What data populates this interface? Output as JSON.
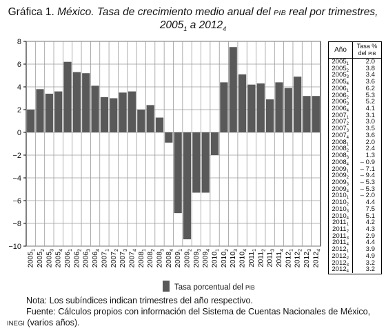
{
  "title": {
    "prefix": "Gráfica 1.",
    "country": "México.",
    "text_a": "Tasa de crecimiento medio anual del",
    "pib": "PIB",
    "text_b": "real por trimestres,",
    "line2_a": "2005",
    "line2_a_sub": "1",
    "line2_mid": "a 2012",
    "line2_b_sub": "4"
  },
  "legend": {
    "label": "Tasa porcentual del",
    "pib": "PIB",
    "color": "#595959"
  },
  "table": {
    "header_year": "Año",
    "header_rate_1": "Tasa %",
    "header_rate_2": "del",
    "header_rate_pib": "PIB"
  },
  "notes": {
    "nota": "Nota: Los subíndices indican trimestres del año respectivo.",
    "fuente": "Fuente: Cálculos propios con información del Sistema de Cuentas Nacionales de México,",
    "inegi": "INEGI",
    "fuente_end": "(varios años)."
  },
  "chart_data": {
    "type": "bar",
    "categories": [
      "2005-1",
      "2005-2",
      "2005-3",
      "2005-4",
      "2006-1",
      "2006-2",
      "2006-3",
      "2006-4",
      "2007-1",
      "2007-2",
      "2007-3",
      "2007-4",
      "2008-1",
      "2008-2",
      "2008-3",
      "2008-4",
      "2009-1",
      "2009-2",
      "2009-3",
      "2009-4",
      "2010-1",
      "2010-2",
      "2010-3",
      "2010-4",
      "2011-1",
      "2011-2",
      "2011-3",
      "2011-4",
      "2012-1",
      "2012-2",
      "2012-3",
      "2012-4"
    ],
    "category_years": [
      "2005",
      "2005",
      "2005",
      "2005",
      "2006",
      "2006",
      "2006",
      "2006",
      "2007",
      "2007",
      "2007",
      "2007",
      "2008",
      "2008",
      "2008",
      "2008",
      "2009",
      "2009",
      "2009",
      "2009",
      "2010",
      "2010",
      "2010",
      "2010",
      "2011",
      "2011",
      "2011",
      "2011",
      "2012",
      "2012",
      "2012",
      "2012"
    ],
    "category_quarters": [
      "1",
      "2",
      "3",
      "4",
      "1",
      "2",
      "3",
      "4",
      "1",
      "2",
      "3",
      "4",
      "1",
      "2",
      "3",
      "4",
      "1",
      "2",
      "3",
      "4",
      "1",
      "2",
      "3",
      "4",
      "1",
      "2",
      "3",
      "4",
      "1",
      "2",
      "3",
      "4"
    ],
    "values": [
      2.0,
      3.8,
      3.4,
      3.6,
      6.2,
      5.3,
      5.2,
      4.1,
      3.1,
      3.0,
      3.5,
      3.6,
      2.0,
      2.4,
      1.3,
      -0.9,
      -7.1,
      -9.4,
      -5.3,
      -5.3,
      -2.0,
      4.4,
      7.5,
      5.1,
      4.2,
      4.3,
      2.9,
      4.4,
      3.9,
      4.9,
      3.2,
      3.2
    ],
    "value_labels": [
      "2.0",
      "3.8",
      "3.4",
      "3.6",
      "6.2",
      "5.3",
      "5.2",
      "4.1",
      "3.1",
      "3.0",
      "3.5",
      "3.6",
      "2.0",
      "2.4",
      "1.3",
      "– 0.9",
      "– 7.1",
      "– 9.4",
      "– 5.3",
      "– 5.3",
      "– 2.0",
      "4.4",
      "7.5",
      "5.1",
      "4.2",
      "4.3",
      "2.9",
      "4.4",
      "3.9",
      "4.9",
      "3.2",
      "3.2"
    ],
    "ylim": [
      -10,
      8
    ],
    "yticks": [
      "8",
      "6",
      "4",
      "2",
      "0",
      "−2",
      "−4",
      "−6",
      "−8",
      "−10"
    ],
    "ytick_values": [
      8,
      6,
      4,
      2,
      0,
      -2,
      -4,
      -6,
      -8,
      -10
    ],
    "grid": true,
    "legend_position": "bottom-center"
  }
}
